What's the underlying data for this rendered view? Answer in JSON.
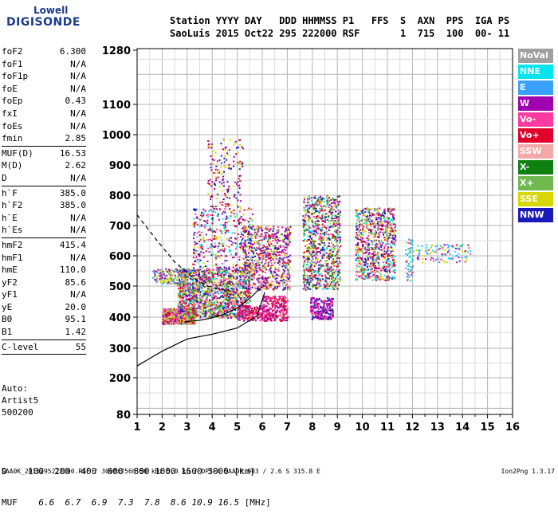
{
  "logo": {
    "line1": "Lowell",
    "line2": "DIGISONDE"
  },
  "header": {
    "line1": "Station YYYY DAY   DDD HHMMSS P1   FFS  S  AXN  PPS  IGA PS",
    "line2": "SaoLuis 2015 Oct22 295 222000 RSF       1  715  100  00- 11"
  },
  "params": [
    {
      "k": "foF2",
      "v": "6.300"
    },
    {
      "k": "foF1",
      "v": "N/A"
    },
    {
      "k": "foF1p",
      "v": "N/A"
    },
    {
      "k": "foE",
      "v": "N/A"
    },
    {
      "k": "foEp",
      "v": "0.43"
    },
    {
      "k": "fxI",
      "v": "N/A"
    },
    {
      "k": "foEs",
      "v": "N/A"
    },
    {
      "k": "fmin",
      "v": "2.85",
      "sep": true
    },
    {
      "k": "MUF(D)",
      "v": "16.53"
    },
    {
      "k": "M(D)",
      "v": "2.62"
    },
    {
      "k": "D",
      "v": "N/A",
      "sep": true
    },
    {
      "k": "h`F",
      "v": "385.0"
    },
    {
      "k": "h`F2",
      "v": "385.0"
    },
    {
      "k": "h`E",
      "v": "N/A"
    },
    {
      "k": "h`Es",
      "v": "N/A",
      "sep": true
    },
    {
      "k": "hmF2",
      "v": "415.4"
    },
    {
      "k": "hmF1",
      "v": "N/A"
    },
    {
      "k": "hmE",
      "v": "110.0"
    },
    {
      "k": "yF2",
      "v": "85.6"
    },
    {
      "k": "yF1",
      "v": "N/A"
    },
    {
      "k": "yE",
      "v": "20.0"
    },
    {
      "k": "B0",
      "v": "95.1"
    },
    {
      "k": "B1",
      "v": "1.42",
      "sep": true
    },
    {
      "k": "C-level",
      "v": "55",
      "sep": true
    }
  ],
  "auto": {
    "line1": "Auto:",
    "line2": "Artist5",
    "line3": "500200"
  },
  "legend": [
    {
      "label": "NoVal",
      "color": "#a0a0a0"
    },
    {
      "label": "NNE",
      "color": "#00e5ee"
    },
    {
      "label": "E",
      "color": "#3aa0ff"
    },
    {
      "label": "W",
      "color": "#a000b0"
    },
    {
      "label": "Vo-",
      "color": "#ff3aa0"
    },
    {
      "label": "Vo+",
      "color": "#e0002a"
    },
    {
      "label": "SSW",
      "color": "#f4a8a8"
    },
    {
      "label": "X-",
      "color": "#108010"
    },
    {
      "label": "X+",
      "color": "#70b850"
    },
    {
      "label": "SSE",
      "color": "#d8d800"
    },
    {
      "label": "NNW",
      "color": "#1a1ab8"
    }
  ],
  "muf_table": {
    "d_label": "D",
    "d_values": [
      "100",
      "200",
      "400",
      "600",
      "800",
      "1000",
      "1500",
      "3000"
    ],
    "d_unit": "[km]",
    "muf_label": "MUF",
    "muf_values": [
      "6.6",
      "6.7",
      "6.9",
      "7.3",
      "7.8",
      "8.6",
      "10.9",
      "16.5"
    ],
    "muf_unit": "[MHz]"
  },
  "footer": {
    "text": "SAA0K_2015295222000.RSF / 300fx256h 50 kHz 5.0 km / DPS-4 SAA0K 903 / 2.6 S 315.8 E",
    "version": "Ion2Png 1.3.17"
  },
  "chart_data": {
    "type": "scatter",
    "x_ticks": [
      1,
      2,
      3,
      4,
      5,
      6,
      7,
      8,
      9,
      10,
      11,
      12,
      13,
      14,
      15,
      16
    ],
    "y_ticks": [
      80,
      200,
      300,
      400,
      500,
      600,
      700,
      800,
      900,
      1000,
      1100,
      1280
    ],
    "xlim": [
      1,
      16
    ],
    "ylim": [
      80,
      1280
    ],
    "grid": true,
    "legend_position": "right",
    "clusters": [
      {
        "x": [
          2.0,
          3.3
        ],
        "y": [
          380,
          430
        ],
        "density": 900,
        "colors": [
          "#ff3aa0",
          "#a000b0",
          "#e0002a",
          "#d8d800",
          "#70b850",
          "#f4a8a8"
        ]
      },
      {
        "x": [
          2.6,
          5.5
        ],
        "y": [
          400,
          560
        ],
        "density": 1600,
        "colors": [
          "#ff3aa0",
          "#a000b0",
          "#e0002a",
          "#d8d800",
          "#70b850",
          "#1a1ab8",
          "#00e5ee",
          "#f4a8a8",
          "#108010"
        ]
      },
      {
        "x": [
          1.6,
          3.0
        ],
        "y": [
          510,
          560
        ],
        "density": 160,
        "colors": [
          "#d8d800",
          "#70b850",
          "#3aa0ff",
          "#a000b0"
        ]
      },
      {
        "x": [
          3.2,
          5.6
        ],
        "y": [
          560,
          760
        ],
        "density": 400,
        "colors": [
          "#a000b0",
          "#1a1ab8",
          "#d8d800",
          "#ff3aa0",
          "#e0002a",
          "#00e5ee"
        ]
      },
      {
        "x": [
          3.8,
          5.2
        ],
        "y": [
          760,
          990
        ],
        "density": 160,
        "colors": [
          "#a000b0",
          "#1a1ab8",
          "#d8d800",
          "#e0002a"
        ]
      },
      {
        "x": [
          5.0,
          6.3
        ],
        "y": [
          390,
          440
        ],
        "density": 200,
        "colors": [
          "#ff3aa0",
          "#a000b0",
          "#e0002a"
        ]
      },
      {
        "x": [
          5.2,
          7.1
        ],
        "y": [
          490,
          700
        ],
        "density": 700,
        "colors": [
          "#ff3aa0",
          "#a000b0",
          "#d8d800",
          "#70b850",
          "#1a1ab8",
          "#e0002a"
        ]
      },
      {
        "x": [
          6.0,
          7.0
        ],
        "y": [
          390,
          470
        ],
        "density": 250,
        "colors": [
          "#ff3aa0",
          "#a000b0",
          "#e0002a"
        ]
      },
      {
        "x": [
          7.9,
          8.8
        ],
        "y": [
          395,
          465
        ],
        "density": 260,
        "colors": [
          "#ff3aa0",
          "#a000b0",
          "#1a1ab8"
        ]
      },
      {
        "x": [
          7.6,
          9.1
        ],
        "y": [
          490,
          800
        ],
        "density": 900,
        "colors": [
          "#ff3aa0",
          "#a000b0",
          "#e0002a",
          "#d8d800",
          "#70b850",
          "#1a1ab8",
          "#00e5ee",
          "#108010"
        ]
      },
      {
        "x": [
          9.7,
          11.3
        ],
        "y": [
          520,
          760
        ],
        "density": 800,
        "colors": [
          "#ff3aa0",
          "#a000b0",
          "#e0002a",
          "#d8d800",
          "#70b850",
          "#1a1ab8",
          "#00e5ee"
        ]
      },
      {
        "x": [
          11.7,
          12.0
        ],
        "y": [
          520,
          660
        ],
        "density": 60,
        "colors": [
          "#00e5ee",
          "#3aa0ff",
          "#ff3aa0",
          "#70b850"
        ]
      },
      {
        "x": [
          12.1,
          14.3
        ],
        "y": [
          580,
          640
        ],
        "density": 110,
        "colors": [
          "#00e5ee",
          "#3aa0ff",
          "#ff3aa0",
          "#a000b0",
          "#d8d800"
        ]
      }
    ],
    "lines": [
      {
        "name": "",
        "style": "solid",
        "x": [
          1.0,
          1.5,
          2.0,
          3.0,
          4.0,
          5.0,
          5.8,
          6.1
        ],
        "y": [
          240,
          265,
          290,
          330,
          345,
          365,
          405,
          480
        ]
      },
      {
        "name": "",
        "style": "solid",
        "x": [
          2.9,
          3.5,
          4.0,
          4.5,
          5.0,
          5.5,
          6.0
        ],
        "y": [
          385,
          390,
          398,
          410,
          430,
          460,
          500
        ]
      },
      {
        "name": "",
        "style": "dashed",
        "x": [
          1.0,
          1.8,
          2.5,
          3.2,
          3.8,
          4.3,
          4.7
        ],
        "y": [
          735,
          650,
          580,
          530,
          500,
          490,
          485
        ]
      }
    ]
  }
}
